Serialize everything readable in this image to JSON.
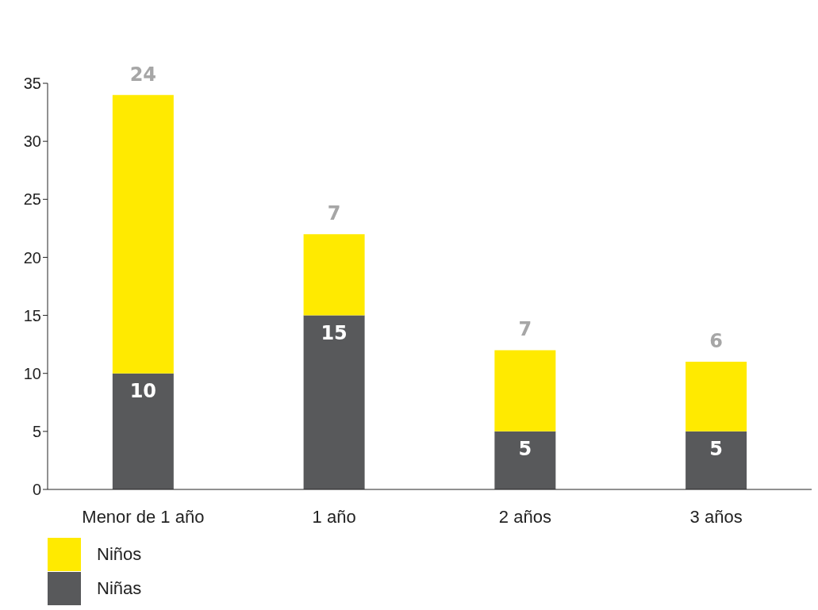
{
  "chart_data": {
    "type": "bar",
    "stacked": true,
    "categories": [
      "Menor de 1 año",
      "1 año",
      "2 años",
      "3 años"
    ],
    "series": [
      {
        "name": "Niñas",
        "color": "#58595b",
        "values": [
          10,
          15,
          5,
          5
        ]
      },
      {
        "name": "Niños",
        "color": "#ffea00",
        "values": [
          24,
          7,
          7,
          6
        ]
      }
    ],
    "ylim": [
      0,
      35
    ],
    "yticks": [
      0,
      5,
      10,
      15,
      20,
      25,
      30,
      35
    ],
    "grid": false,
    "legend": "bottom left",
    "data_labels": true
  }
}
